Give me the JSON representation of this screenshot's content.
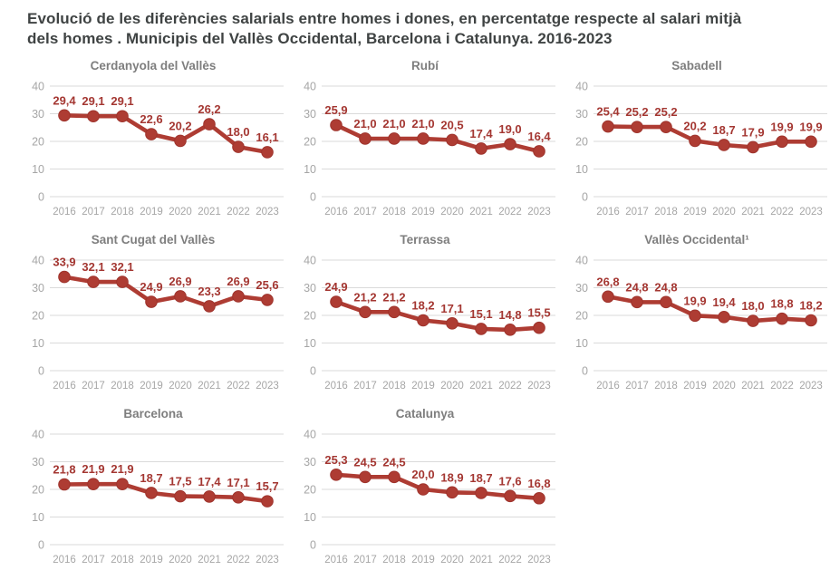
{
  "page": {
    "title_line1": "Evolució de les diferències salarials entre homes i dones, en percentatge respecte al salari mitjà",
    "title_line2": "dels homes . Municipis del Vallès Occidental, Barcelona i Catalunya. 2016-2023"
  },
  "colors": {
    "line_red": "#ae3c33",
    "marker_edge": "#9e332c",
    "label_red": "#a43732",
    "grid_gray": "#dadada",
    "tick_gray": "#a6a6a6",
    "chart_title_gray": "#7e7e7e",
    "page_title_gray": "#3f4343"
  },
  "chart_data": [
    {
      "type": "line",
      "title": "Cerdanyola del Vallès",
      "categories": [
        "2016",
        "2017",
        "2018",
        "2019",
        "2020",
        "2021",
        "2022",
        "2023"
      ],
      "values": [
        29.4,
        29.1,
        29.1,
        22.6,
        20.2,
        26.2,
        18.0,
        16.1
      ],
      "labels": [
        "29,4",
        "29,1",
        "29,1",
        "22,6",
        "20,2",
        "26,2",
        "18,0",
        "16,1"
      ],
      "ylim": [
        0,
        40
      ],
      "yticks": [
        0,
        10,
        20,
        30,
        40
      ],
      "grid": true,
      "legend": false
    },
    {
      "type": "line",
      "title": "Rubí",
      "categories": [
        "2016",
        "2017",
        "2018",
        "2019",
        "2020",
        "2021",
        "2022",
        "2023"
      ],
      "values": [
        25.9,
        21.0,
        21.0,
        21.0,
        20.5,
        17.4,
        19.0,
        16.4
      ],
      "labels": [
        "25,9",
        "21,0",
        "21,0",
        "21,0",
        "20,5",
        "17,4",
        "19,0",
        "16,4"
      ],
      "ylim": [
        0,
        40
      ],
      "yticks": [
        0,
        10,
        20,
        30,
        40
      ],
      "grid": true,
      "legend": false
    },
    {
      "type": "line",
      "title": "Sabadell",
      "categories": [
        "2016",
        "2017",
        "2018",
        "2019",
        "2020",
        "2021",
        "2022",
        "2023"
      ],
      "values": [
        25.4,
        25.2,
        25.2,
        20.2,
        18.7,
        17.9,
        19.9,
        19.9
      ],
      "labels": [
        "25,4",
        "25,2",
        "25,2",
        "20,2",
        "18,7",
        "17,9",
        "19,9",
        "19,9"
      ],
      "ylim": [
        0,
        40
      ],
      "yticks": [
        0,
        10,
        20,
        30,
        40
      ],
      "grid": true,
      "legend": false
    },
    {
      "type": "line",
      "title": "Sant Cugat del Vallès",
      "categories": [
        "2016",
        "2017",
        "2018",
        "2019",
        "2020",
        "2021",
        "2022",
        "2023"
      ],
      "values": [
        33.9,
        32.1,
        32.1,
        24.9,
        26.9,
        23.3,
        26.9,
        25.6
      ],
      "labels": [
        "33,9",
        "32,1",
        "32,1",
        "24,9",
        "26,9",
        "23,3",
        "26,9",
        "25,6"
      ],
      "ylim": [
        0,
        40
      ],
      "yticks": [
        0,
        10,
        20,
        30,
        40
      ],
      "grid": true,
      "legend": false
    },
    {
      "type": "line",
      "title": "Terrassa",
      "categories": [
        "2016",
        "2017",
        "2018",
        "2019",
        "2020",
        "2021",
        "2022",
        "2023"
      ],
      "values": [
        24.9,
        21.2,
        21.2,
        18.2,
        17.1,
        15.1,
        14.8,
        15.5
      ],
      "labels": [
        "24,9",
        "21,2",
        "21,2",
        "18,2",
        "17,1",
        "15,1",
        "14,8",
        "15,5"
      ],
      "ylim": [
        0,
        40
      ],
      "yticks": [
        0,
        10,
        20,
        30,
        40
      ],
      "grid": true,
      "legend": false
    },
    {
      "type": "line",
      "title": "Vallès Occidental¹",
      "categories": [
        "2016",
        "2017",
        "2018",
        "2019",
        "2020",
        "2021",
        "2022",
        "2023"
      ],
      "values": [
        26.8,
        24.8,
        24.8,
        19.9,
        19.4,
        18.0,
        18.8,
        18.2
      ],
      "labels": [
        "26,8",
        "24,8",
        "24,8",
        "19,9",
        "19,4",
        "18,0",
        "18,8",
        "18,2"
      ],
      "ylim": [
        0,
        40
      ],
      "yticks": [
        0,
        10,
        20,
        30,
        40
      ],
      "grid": true,
      "legend": false
    },
    {
      "type": "line",
      "title": "Barcelona",
      "categories": [
        "2016",
        "2017",
        "2018",
        "2019",
        "2020",
        "2021",
        "2022",
        "2023"
      ],
      "values": [
        21.8,
        21.9,
        21.9,
        18.7,
        17.5,
        17.4,
        17.1,
        15.7
      ],
      "labels": [
        "21,8",
        "21,9",
        "21,9",
        "18,7",
        "17,5",
        "17,4",
        "17,1",
        "15,7"
      ],
      "ylim": [
        0,
        40
      ],
      "yticks": [
        0,
        10,
        20,
        30,
        40
      ],
      "grid": true,
      "legend": false
    },
    {
      "type": "line",
      "title": "Catalunya",
      "categories": [
        "2016",
        "2017",
        "2018",
        "2019",
        "2020",
        "2021",
        "2022",
        "2023"
      ],
      "values": [
        25.3,
        24.5,
        24.5,
        20.0,
        18.9,
        18.7,
        17.6,
        16.8
      ],
      "labels": [
        "25,3",
        "24,5",
        "24,5",
        "20,0",
        "18,9",
        "18,7",
        "17,6",
        "16,8"
      ],
      "ylim": [
        0,
        40
      ],
      "yticks": [
        0,
        10,
        20,
        30,
        40
      ],
      "grid": true,
      "legend": false
    }
  ]
}
